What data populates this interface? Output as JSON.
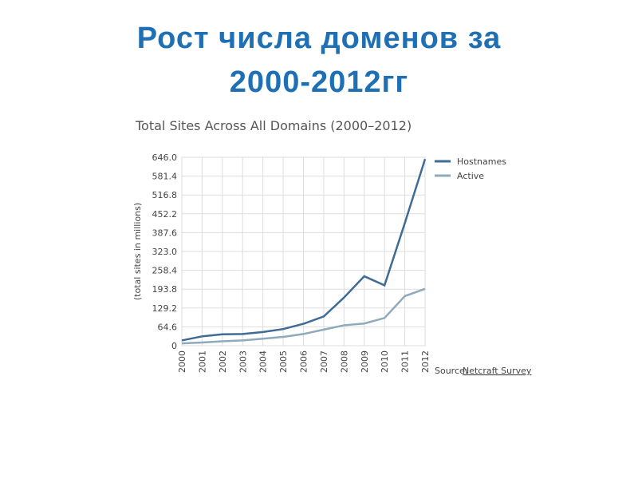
{
  "heading": [
    "Рост числа доменов за",
    "2000-2012гг"
  ],
  "chart_data": {
    "type": "line",
    "title": "Total Sites Across All Domains (2000–2012)",
    "y_label": "(total sites in millions)",
    "categories": [
      "2000",
      "2001",
      "2002",
      "2003",
      "2004",
      "2005",
      "2006",
      "2007",
      "2008",
      "2009",
      "2010",
      "2011",
      "2012"
    ],
    "series": [
      {
        "name": "Hostnames",
        "color": "#3f6b94",
        "values": [
          18,
          32,
          39,
          40,
          47,
          57,
          75,
          100,
          165,
          238,
          207,
          420,
          640
        ]
      },
      {
        "name": "Active",
        "color": "#8eaabb",
        "values": [
          8,
          11,
          15,
          18,
          24,
          30,
          40,
          55,
          70,
          76,
          95,
          170,
          195
        ]
      }
    ],
    "ylim": [
      0,
      646
    ],
    "yticks": [
      0,
      64.6,
      129.2,
      193.8,
      258.4,
      {
        "value": 323,
        "label": "323.0"
      },
      387.6,
      452.2,
      516.8,
      581.4,
      {
        "value": 646,
        "label": "646.0"
      }
    ],
    "grid": true,
    "legend": "right",
    "source_label": "Source:",
    "source": "Netcraft Survey"
  }
}
